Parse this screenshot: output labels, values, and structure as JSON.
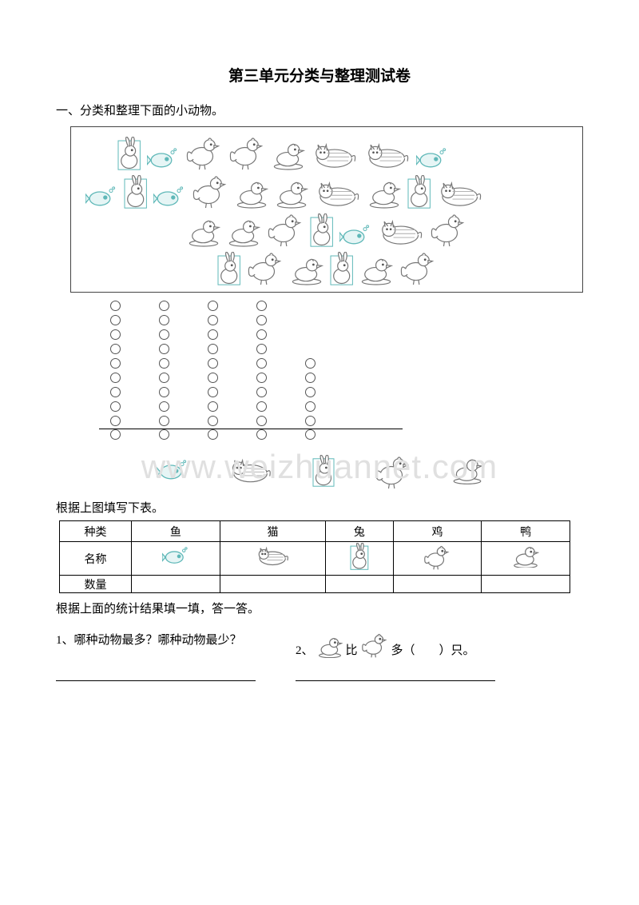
{
  "title": "第三单元分类与整理测试卷",
  "section1": "一、分类和整理下面的小动物。",
  "watermark": "www.weizhuannet.com",
  "animals_box": {
    "rows": [
      [
        "rabbit",
        "fish",
        "rooster",
        "rooster",
        "duck",
        "cat",
        "cat",
        "fish"
      ],
      [
        "fish",
        "rabbit",
        "fish",
        "rooster",
        "duck",
        "duck",
        "cat",
        "duck",
        "rabbit",
        "cat"
      ],
      [
        "duck",
        "duck",
        "rooster",
        "rabbit",
        "fish",
        "cat",
        "rooster"
      ],
      [
        "rabbit",
        "rooster",
        "duck",
        "rabbit",
        "duck",
        "rooster"
      ]
    ]
  },
  "tally": {
    "rows": 10,
    "cols_by_row": [
      4,
      4,
      4,
      4,
      5,
      5,
      5,
      5,
      5,
      5
    ]
  },
  "legend": [
    "fish",
    "cat",
    "rabbit",
    "rooster",
    "duck"
  ],
  "text_fill_table": "根据上图填写下表。",
  "table": {
    "header_label": "种类",
    "row2_label": "名称",
    "row3_label": "数量",
    "cols": [
      "鱼",
      "猫",
      "兔",
      "鸡",
      "鸭"
    ],
    "icons": [
      "fish",
      "cat",
      "rabbit",
      "rooster",
      "duck"
    ]
  },
  "text_fill_answer": "根据上面的统计结果填一填，答一答。",
  "q1": "1、哪种动物最多？哪种动物最少？",
  "q2_prefix": "2、",
  "q2_mid": "比",
  "q2_suffix": "多（　　）只。",
  "colors": {
    "teal": "#5fb8b8",
    "teal_fill": "#e6f5f5",
    "gray": "#888888",
    "light": "#f5f5f5"
  }
}
